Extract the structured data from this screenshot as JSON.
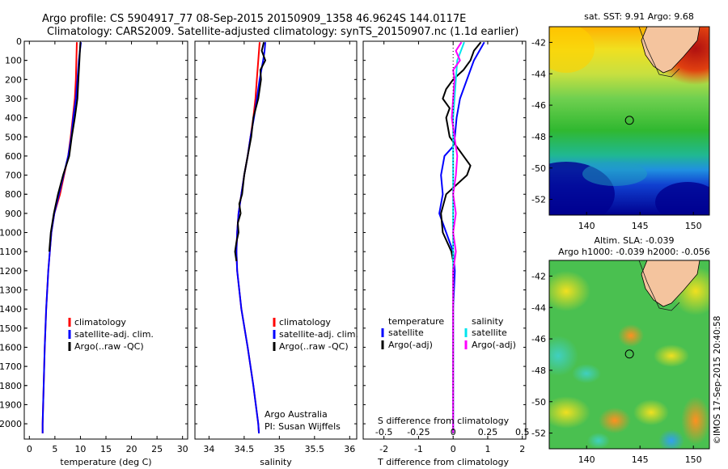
{
  "header": {
    "line1": "Argo profile: CS 5904917_77 08-Sep-2015 20150909_1358 46.9624S 144.0117E",
    "line2": "Climatology: CARS2009. Satellite-adjusted climatology: synTS_20150907.nc (1.1d earlier)"
  },
  "watermark": "©IMOS 17-Sep-2015 20:40:58",
  "colors": {
    "climatology": "#ff0000",
    "satellite": "#0000ff",
    "argo": "#000000",
    "sal_satellite": "#00e5ee",
    "sal_argo": "#ff00ff"
  },
  "chart_data": [
    {
      "type": "line",
      "xlabel": "temperature (deg C)",
      "xlim": [
        -1,
        31
      ],
      "xticks": [
        "0",
        "5",
        "10",
        "15",
        "20",
        "25",
        "30"
      ],
      "ylim": [
        2080,
        0
      ],
      "yticks": [
        "0",
        "100",
        "200",
        "300",
        "400",
        "500",
        "600",
        "700",
        "800",
        "900",
        "1000",
        "1100",
        "1200",
        "1300",
        "1400",
        "1500",
        "1600",
        "1700",
        "1800",
        "1900",
        "2000"
      ],
      "legend": [
        "climatology",
        "satellite-adj. clim.",
        "Argo(..raw -QC)"
      ],
      "legend_position": "lower-center",
      "series": [
        {
          "name": "climatology",
          "pressure": [
            5,
            100,
            200,
            300,
            400,
            500,
            600,
            700,
            800,
            900,
            1000,
            1200,
            1400,
            1600,
            1800,
            2000,
            2050
          ],
          "values": [
            9.3,
            9.2,
            9.1,
            8.9,
            8.5,
            8.1,
            7.6,
            6.8,
            6.0,
            4.9,
            4.3,
            3.7,
            3.3,
            3.0,
            2.8,
            2.6,
            2.6
          ]
        },
        {
          "name": "satellite-adj. clim.",
          "pressure": [
            5,
            50,
            100,
            200,
            300,
            400,
            500,
            600,
            700,
            800,
            900,
            1000,
            1200,
            1400,
            1600,
            1800,
            2000,
            2050
          ],
          "values": [
            10.1,
            9.9,
            9.7,
            9.4,
            9.1,
            8.6,
            8.2,
            7.6,
            6.7,
            5.8,
            4.9,
            4.3,
            3.7,
            3.3,
            3.0,
            2.8,
            2.6,
            2.6
          ]
        },
        {
          "name": "Argo(..raw -QC)",
          "pressure": [
            5,
            50,
            100,
            200,
            300,
            400,
            500,
            600,
            650,
            700,
            800,
            900,
            1000,
            1100
          ],
          "values": [
            10.0,
            9.9,
            9.8,
            9.6,
            9.4,
            8.9,
            8.3,
            7.8,
            7.2,
            6.6,
            5.6,
            4.8,
            4.2,
            3.9
          ]
        }
      ]
    },
    {
      "type": "line",
      "xlabel": "salinity",
      "xlim": [
        33.8,
        36.1
      ],
      "xticks": [
        "34",
        "34.5",
        "35",
        "35.5",
        "36"
      ],
      "ylim": [
        2080,
        0
      ],
      "legend": [
        "climatology",
        "satellite-adj. clim.",
        "Argo(..raw -QC)"
      ],
      "legend_position": "lower-center",
      "annotation": [
        "Argo Australia",
        "PI: Susan Wijffels"
      ],
      "series": [
        {
          "name": "climatology",
          "pressure": [
            5,
            100,
            200,
            300,
            400,
            500,
            600,
            700,
            800,
            900,
            1000,
            1100,
            1200,
            1400,
            1600,
            1800,
            2000,
            2050
          ],
          "values": [
            34.72,
            34.7,
            34.68,
            34.66,
            34.63,
            34.59,
            34.55,
            34.5,
            34.46,
            34.42,
            34.4,
            34.39,
            34.4,
            34.46,
            34.55,
            34.63,
            34.7,
            34.71
          ]
        },
        {
          "name": "satellite-adj. clim.",
          "pressure": [
            5,
            50,
            100,
            200,
            300,
            400,
            500,
            600,
            700,
            800,
            900,
            1000,
            1100,
            1200,
            1400,
            1600,
            1800,
            2000,
            2050
          ],
          "values": [
            34.8,
            34.79,
            34.77,
            34.72,
            34.68,
            34.64,
            34.59,
            34.55,
            34.5,
            34.46,
            34.42,
            34.4,
            34.39,
            34.4,
            34.46,
            34.55,
            34.63,
            34.7,
            34.71
          ]
        },
        {
          "name": "Argo(..raw -QC)",
          "pressure": [
            5,
            50,
            100,
            150,
            200,
            250,
            300,
            400,
            500,
            600,
            700,
            800,
            850,
            900,
            950,
            1000,
            1050,
            1100,
            1150
          ],
          "values": [
            34.78,
            34.75,
            34.8,
            34.73,
            34.74,
            34.72,
            34.7,
            34.63,
            34.6,
            34.55,
            34.5,
            34.47,
            34.43,
            34.45,
            34.41,
            34.42,
            34.39,
            34.37,
            34.39
          ]
        }
      ]
    },
    {
      "type": "line",
      "xlabel": "T difference from climatology",
      "x2label": "S difference from climatology",
      "xlim": [
        -2.6,
        2.1
      ],
      "xticks": [
        "-2",
        "-1",
        "0",
        "1",
        "2"
      ],
      "x2ticks": [
        "-0.5",
        "-0.25",
        "0",
        "0.25",
        "0.5"
      ],
      "ylim": [
        2080,
        0
      ],
      "legend_left": {
        "title": "temperature",
        "items": [
          "satellite",
          "Argo(-adj)"
        ]
      },
      "legend_right": {
        "title": "salinity",
        "items": [
          "satellite",
          "Argo(-adj)"
        ]
      },
      "series": [
        {
          "name": "T satellite",
          "pressure": [
            5,
            100,
            200,
            300,
            400,
            500,
            550,
            600,
            700,
            800,
            900,
            1000,
            1100,
            1200,
            1400,
            1600,
            1800,
            2000,
            2050
          ],
          "values": [
            0.9,
            0.6,
            0.4,
            0.2,
            0.1,
            0.05,
            0.0,
            -0.25,
            -0.35,
            -0.3,
            -0.4,
            -0.2,
            0.0,
            0.05,
            0.0,
            0.0,
            0.0,
            0.0,
            0.0
          ]
        },
        {
          "name": "T Argo(-adj)",
          "pressure": [
            5,
            50,
            100,
            150,
            200,
            250,
            300,
            350,
            400,
            500,
            600,
            650,
            700,
            800,
            900,
            1000,
            1100,
            1150
          ],
          "values": [
            0.8,
            0.6,
            0.5,
            0.3,
            0.0,
            -0.2,
            -0.3,
            -0.1,
            -0.2,
            -0.1,
            0.3,
            0.5,
            0.4,
            -0.2,
            -0.35,
            -0.3,
            -0.05,
            0.0
          ]
        },
        {
          "name": "S satellite",
          "pressure": [
            5,
            100,
            200,
            300,
            400,
            500,
            600,
            700,
            800,
            1000,
            1200,
            1400,
            1600,
            1800,
            2000,
            2050
          ],
          "values": [
            0.08,
            0.03,
            0.02,
            0.01,
            0.0,
            0.0,
            0.0,
            0.0,
            0.0,
            0.0,
            0.0,
            0.0,
            0.0,
            0.0,
            0.0,
            0.0
          ]
        },
        {
          "name": "S Argo(-adj)",
          "pressure": [
            5,
            50,
            100,
            150,
            200,
            300,
            400,
            500,
            600,
            700,
            800,
            900,
            1000,
            1100,
            1200,
            1300,
            1500,
            1700,
            1900,
            2000,
            2050
          ],
          "values": [
            0.06,
            0.02,
            0.05,
            0.0,
            0.01,
            0.0,
            -0.01,
            0.01,
            0.03,
            0.02,
            0.0,
            0.02,
            0.0,
            0.02,
            0.0,
            0.0,
            0.0,
            0.0,
            0.0,
            0.0,
            0.0
          ]
        }
      ]
    },
    {
      "type": "heatmap",
      "title": "sat. SST: 9.91  Argo: 9.68",
      "xlim": [
        136.5,
        151.5
      ],
      "ylim": [
        -53,
        -41
      ],
      "xticks": [
        "140",
        "145",
        "150"
      ],
      "yticks": [
        "-42",
        "-44",
        "-46",
        "-48",
        "-50",
        "-52"
      ],
      "profile_location": [
        144.0117,
        -46.9624
      ]
    },
    {
      "type": "heatmap",
      "title1": "Altim. SLA: -0.039",
      "title2": "Argo h1000: -0.039  h2000: -0.056",
      "xlim": [
        136.5,
        151.5
      ],
      "ylim": [
        -53,
        -41
      ],
      "xticks": [
        "140",
        "145",
        "150"
      ],
      "yticks": [
        "-42",
        "-44",
        "-46",
        "-48",
        "-50",
        "-52"
      ],
      "profile_location": [
        144.0117,
        -46.9624
      ]
    }
  ]
}
